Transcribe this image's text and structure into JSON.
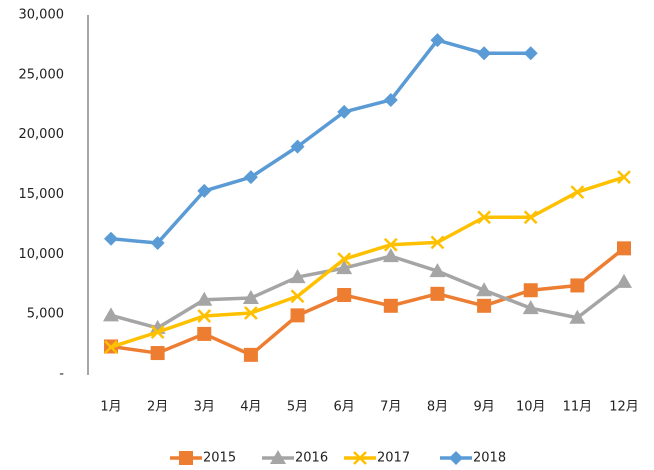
{
  "chart_data": {
    "type": "line",
    "categories": [
      "1月",
      "2月",
      "3月",
      "4月",
      "5月",
      "6月",
      "7月",
      "8月",
      "9月",
      "10月",
      "11月",
      "12月"
    ],
    "series": [
      {
        "name": "2015",
        "color": "#ed7d31",
        "marker": "square",
        "values": [
          2300,
          1750,
          3350,
          1600,
          4900,
          6600,
          5700,
          6700,
          5700,
          7000,
          7400,
          10500
        ]
      },
      {
        "name": "2016",
        "color": "#a5a5a5",
        "marker": "triangle",
        "values": [
          4900,
          3850,
          6200,
          6350,
          8100,
          8850,
          9850,
          8600,
          7000,
          5500,
          4700,
          7700
        ]
      },
      {
        "name": "2017",
        "color": "#ffc000",
        "marker": "x",
        "values": [
          2250,
          3500,
          4850,
          5100,
          6500,
          9600,
          10800,
          11000,
          13100,
          13100,
          15200,
          16450
        ]
      },
      {
        "name": "2018",
        "color": "#5b9bd5",
        "marker": "diamond",
        "values": [
          11300,
          10950,
          15300,
          16450,
          19000,
          21900,
          22900,
          27900,
          26800,
          26800,
          null,
          null
        ]
      }
    ],
    "ylim": [
      0,
      30000
    ],
    "yticks": [
      {
        "value": 0,
        "label": "-"
      },
      {
        "value": 5000,
        "label": "5,000"
      },
      {
        "value": 10000,
        "label": "10,000"
      },
      {
        "value": 15000,
        "label": "15,000"
      },
      {
        "value": 20000,
        "label": "20,000"
      },
      {
        "value": 25000,
        "label": "25,000"
      },
      {
        "value": 30000,
        "label": "30,000"
      }
    ],
    "grid": false,
    "legend": "bottom"
  }
}
